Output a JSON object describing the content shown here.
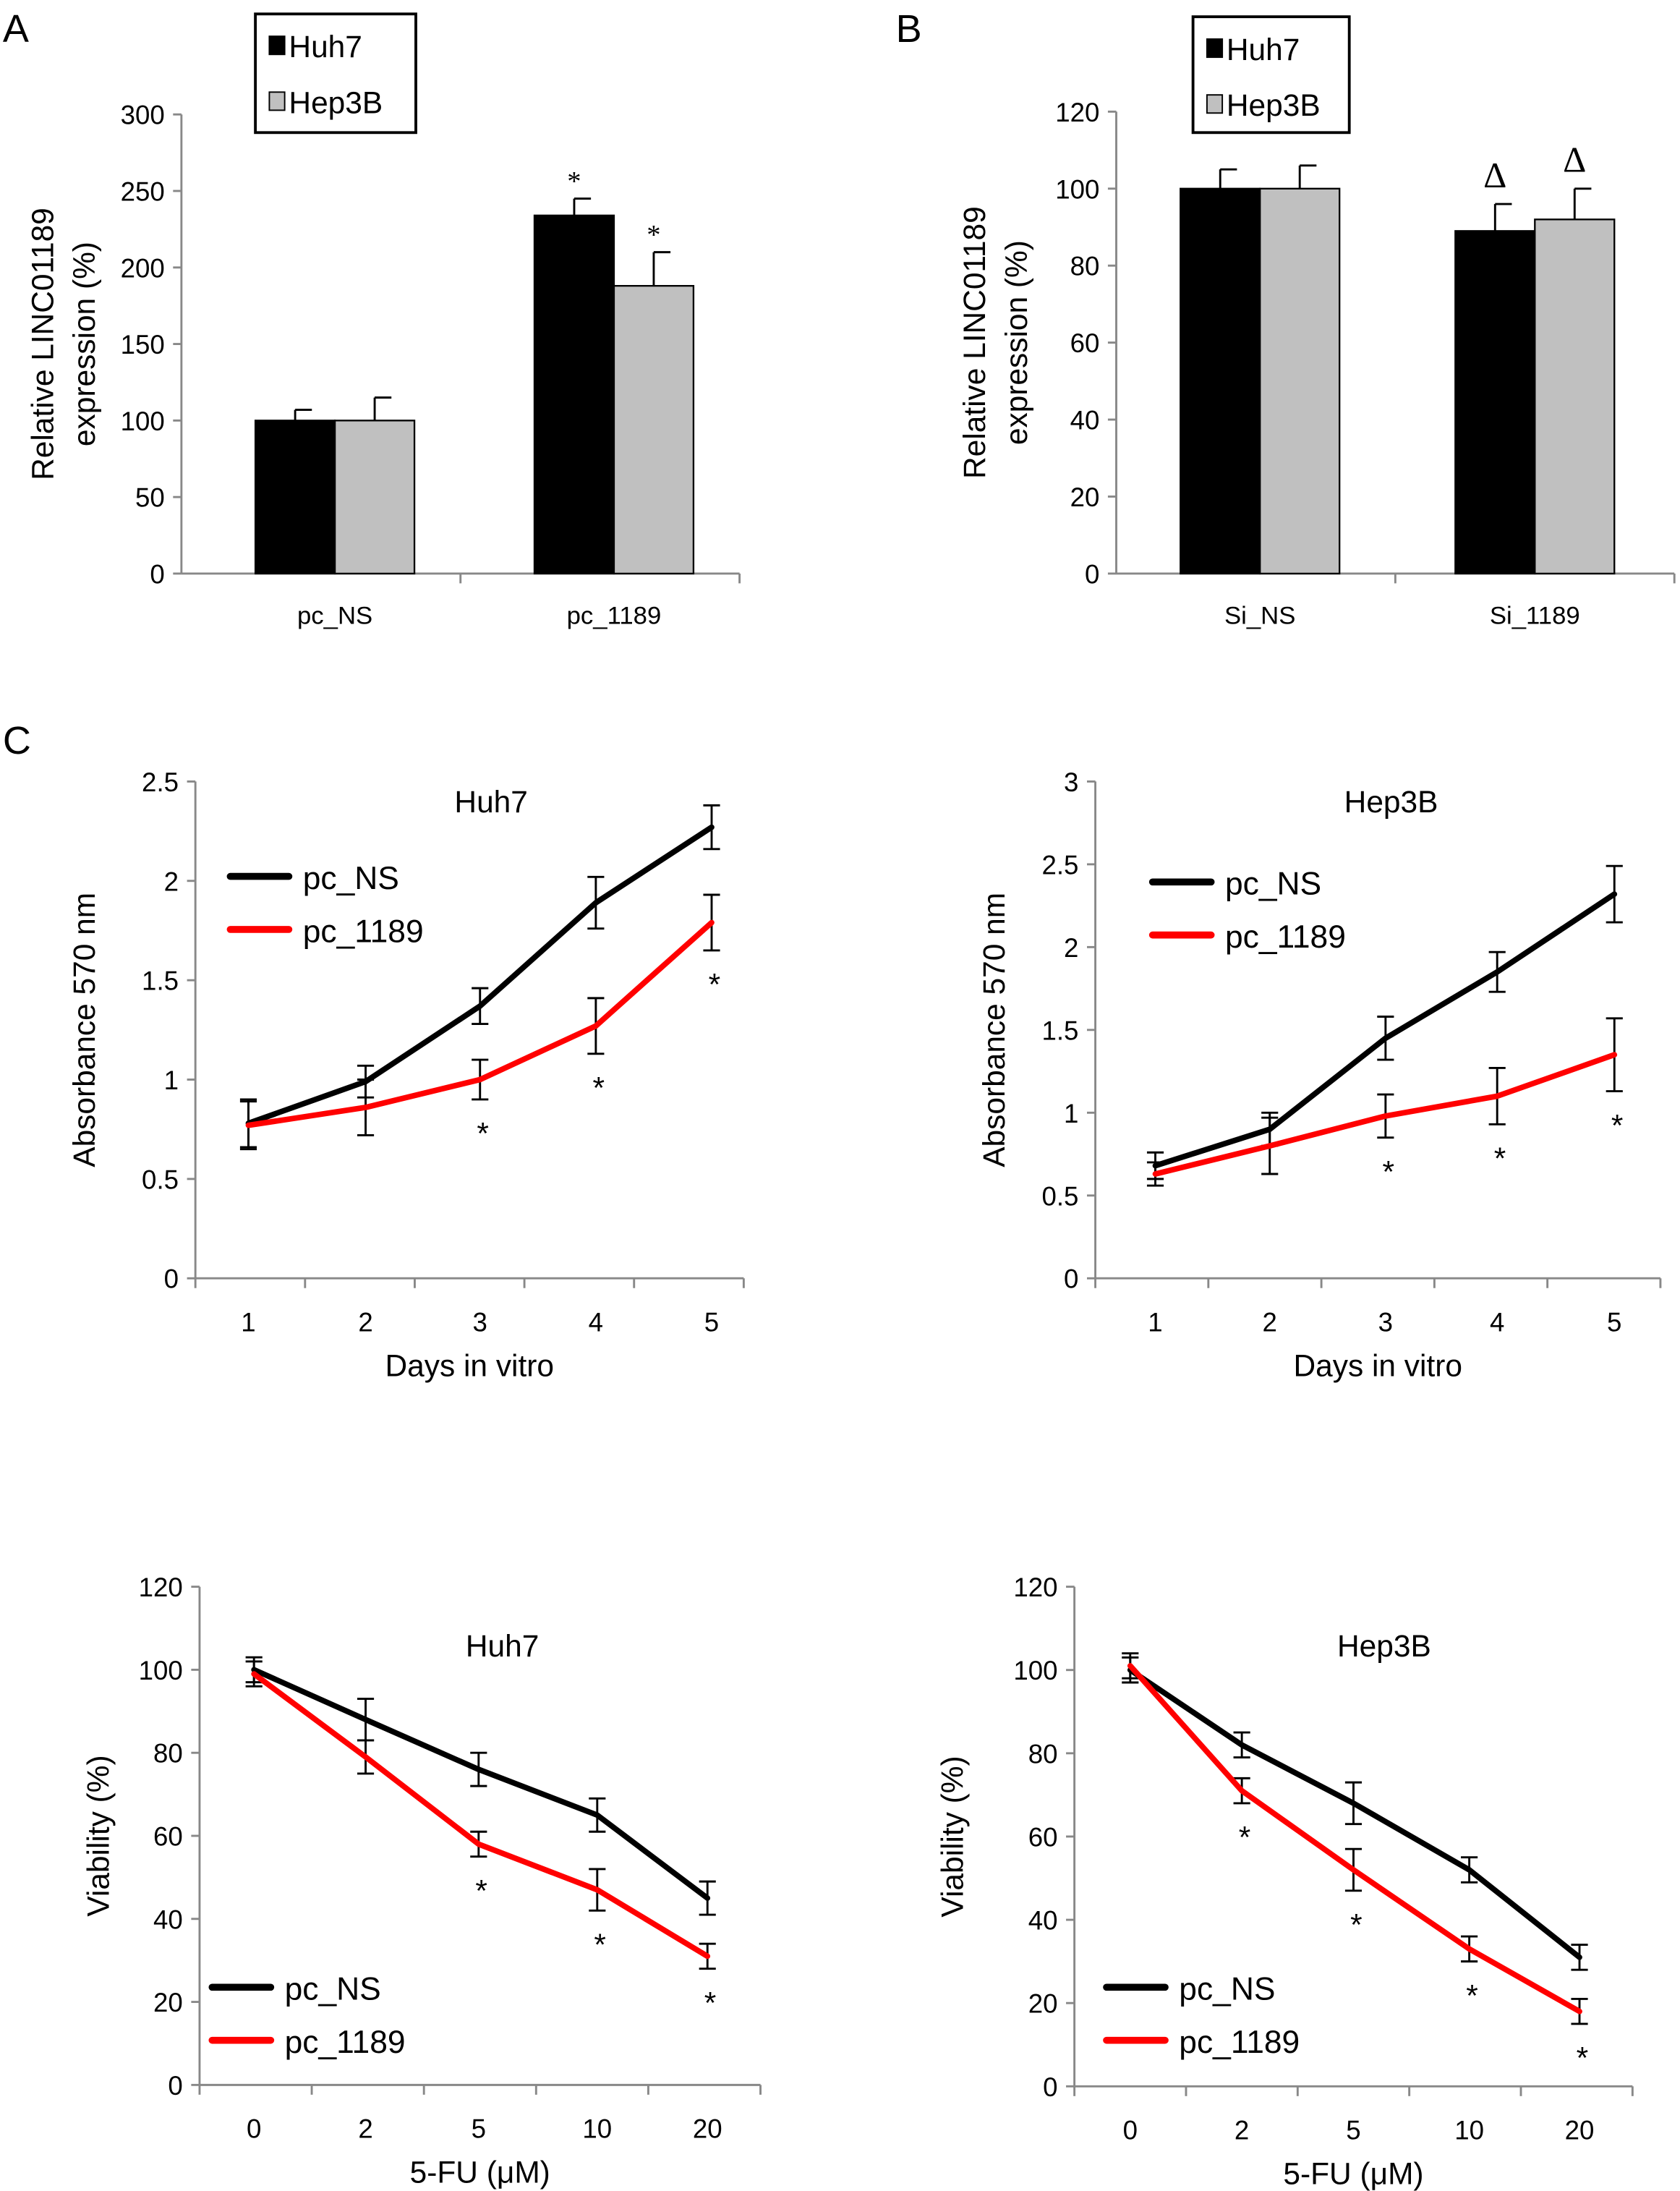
{
  "panel_labels": [
    "A",
    "B",
    "C"
  ],
  "chart_data": [
    {
      "id": "A",
      "type": "bar",
      "categories": [
        "pc_NS",
        "pc_1189"
      ],
      "series": [
        {
          "name": "Huh7",
          "color": "#000000",
          "values": [
            100,
            234
          ],
          "errors": [
            7,
            11
          ],
          "markers": [
            "",
            "*"
          ]
        },
        {
          "name": "Hep3B",
          "color": "#c0c0c0",
          "values": [
            100,
            188
          ],
          "errors": [
            15,
            22
          ],
          "markers": [
            "",
            "*"
          ]
        }
      ],
      "ylabel": [
        "Relative LINC01189",
        "expression (%)"
      ],
      "ylim": [
        0,
        300
      ],
      "yticks": [
        0,
        50,
        100,
        150,
        200,
        250,
        300
      ],
      "legend": "top-left boxed"
    },
    {
      "id": "B",
      "type": "bar",
      "categories": [
        "Si_NS",
        "Si_1189"
      ],
      "series": [
        {
          "name": "Huh7",
          "color": "#000000",
          "values": [
            100,
            89
          ],
          "errors": [
            5,
            7
          ],
          "markers": [
            "",
            "Δ"
          ]
        },
        {
          "name": "Hep3B",
          "color": "#c0c0c0",
          "values": [
            100,
            92
          ],
          "errors": [
            6,
            8
          ],
          "markers": [
            "",
            "Δ"
          ]
        }
      ],
      "ylabel": [
        "Relative LINC01189",
        "expression (%)"
      ],
      "ylim": [
        0,
        120
      ],
      "yticks": [
        0,
        20,
        40,
        60,
        80,
        100,
        120
      ],
      "legend": "top-left boxed"
    },
    {
      "id": "C1",
      "type": "line",
      "title": "Huh7",
      "x": [
        "1",
        "2",
        "3",
        "4",
        "5"
      ],
      "series": [
        {
          "name": "pc_NS",
          "color": "#000000",
          "values": [
            0.78,
            0.99,
            1.37,
            1.89,
            2.27
          ],
          "errors": [
            0.12,
            0.08,
            0.09,
            0.13,
            0.11
          ]
        },
        {
          "name": "pc_1189",
          "color": "#ff0000",
          "values": [
            0.77,
            0.86,
            1.0,
            1.27,
            1.79
          ],
          "errors": [
            0.12,
            0.14,
            0.1,
            0.14,
            0.14
          ]
        }
      ],
      "significance": [
        "",
        "",
        "*",
        "*",
        "*"
      ],
      "xlabel": "Days in vitro",
      "ylabel": "Absorbance 570 nm",
      "ylim": [
        0,
        2.5
      ],
      "yticks": [
        "0",
        "0.5",
        "1",
        "1.5",
        "2",
        "2.5"
      ],
      "legend": "top-left"
    },
    {
      "id": "C2",
      "type": "line",
      "title": "Hep3B",
      "x": [
        "1",
        "2",
        "3",
        "4",
        "5"
      ],
      "series": [
        {
          "name": "pc_NS",
          "color": "#000000",
          "values": [
            0.68,
            0.9,
            1.45,
            1.85,
            2.32
          ],
          "errors": [
            0.08,
            0.1,
            0.13,
            0.12,
            0.17
          ]
        },
        {
          "name": "pc_1189",
          "color": "#ff0000",
          "values": [
            0.63,
            0.8,
            0.98,
            1.1,
            1.35
          ],
          "errors": [
            0.07,
            0.17,
            0.13,
            0.17,
            0.22
          ]
        }
      ],
      "significance": [
        "",
        "",
        "*",
        "*",
        "*"
      ],
      "xlabel": "Days in vitro",
      "ylabel": "Absorbance 570 nm",
      "ylim": [
        0,
        3
      ],
      "yticks": [
        "0",
        "0.5",
        "1",
        "1.5",
        "2",
        "2.5",
        "3"
      ],
      "legend": "top-left"
    },
    {
      "id": "D1",
      "type": "line",
      "title": "Huh7",
      "x": [
        "0",
        "2",
        "5",
        "10",
        "20"
      ],
      "series": [
        {
          "name": "pc_NS",
          "color": "#000000",
          "values": [
            100,
            88,
            76,
            65,
            45
          ],
          "errors": [
            3,
            5,
            4,
            4,
            4
          ]
        },
        {
          "name": "pc_1189",
          "color": "#ff0000",
          "values": [
            99,
            79,
            58,
            47,
            31
          ],
          "errors": [
            3,
            4,
            3,
            5,
            3
          ]
        }
      ],
      "significance": [
        "",
        "",
        "*",
        "*",
        "*"
      ],
      "xlabel": "5-FU (μM)",
      "ylabel": "Viability (%)",
      "ylim": [
        0,
        120
      ],
      "yticks": [
        "0",
        "20",
        "40",
        "60",
        "80",
        "100",
        "120"
      ],
      "legend": "bottom-left"
    },
    {
      "id": "D2",
      "type": "line",
      "title": "Hep3B",
      "x": [
        "0",
        "2",
        "5",
        "10",
        "20"
      ],
      "series": [
        {
          "name": "pc_NS",
          "color": "#000000",
          "values": [
            100,
            82,
            68,
            52,
            31
          ],
          "errors": [
            3,
            3,
            5,
            3,
            3
          ]
        },
        {
          "name": "pc_1189",
          "color": "#ff0000",
          "values": [
            101,
            71,
            52,
            33,
            18
          ],
          "errors": [
            3,
            3,
            5,
            3,
            3
          ]
        }
      ],
      "significance": [
        "",
        "*",
        "*",
        "*",
        "*"
      ],
      "xlabel": "5-FU (μM)",
      "ylabel": "Viability (%)",
      "ylim": [
        0,
        120
      ],
      "yticks": [
        "0",
        "20",
        "40",
        "60",
        "80",
        "100",
        "120"
      ],
      "legend": "bottom-left"
    }
  ]
}
